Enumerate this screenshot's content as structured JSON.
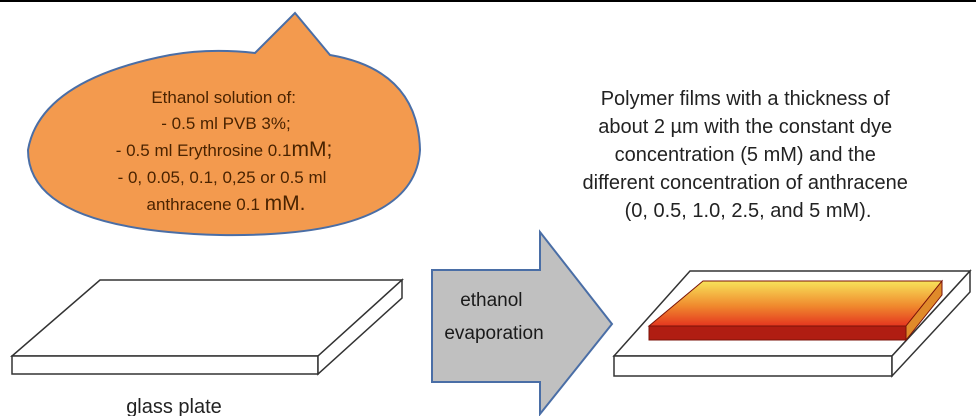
{
  "bubble": {
    "line1": "Ethanol  solution of:",
    "line2": "- 0.5 ml PVB 3%;",
    "line3_prefix": "- 0.5 ml Erythrosine 0.1",
    "line3_unit": "mM;",
    "line4": "- 0, 0.05, 0.1, 0,25 or 0.5 ml",
    "line5_prefix": "anthracene 0.1 ",
    "line5_unit": "mM."
  },
  "description": {
    "lines": [
      "Polymer films with a thickness of",
      "about 2 µm with the constant dye",
      "concentration (5 mM) and the",
      "different concentration of anthracene",
      "(0, 0.5, 1.0, 2.5, and 5 mM)."
    ]
  },
  "arrow": {
    "line1": "ethanol",
    "line2": "evaporation"
  },
  "glass_caption": "glass plate",
  "colors": {
    "bubble_fill": "#f39a4e",
    "bubble_stroke": "#4a6ea6",
    "arrow_fill": "#c0c0c0",
    "arrow_stroke": "#4a6ea6",
    "film_top_light": "#f7e35a",
    "film_top_dark": "#e4361f",
    "film_side": "#b01d12"
  }
}
